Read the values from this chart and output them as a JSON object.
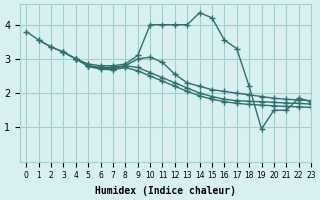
{
  "xlabel": "Humidex (Indice chaleur)",
  "bg_color": "#d8f0f0",
  "grid_color": "#a0d0d0",
  "line_color": "#2d7070",
  "line_width": 1.0,
  "marker": "+",
  "markersize": 5,
  "xlim": [
    -0.5,
    23
  ],
  "ylim": [
    0,
    4.6
  ],
  "yticks": [
    1,
    2,
    3,
    4
  ],
  "xticks": [
    0,
    1,
    2,
    3,
    4,
    5,
    6,
    7,
    8,
    9,
    10,
    11,
    12,
    13,
    14,
    15,
    16,
    17,
    18,
    19,
    20,
    21,
    22,
    23
  ],
  "line1_x": [
    0,
    1,
    2,
    3,
    4,
    5,
    6,
    7,
    8,
    9,
    10,
    11,
    12,
    13,
    14,
    15,
    16,
    17,
    18,
    19,
    20,
    21,
    22,
    23
  ],
  "line1_y": [
    3.8,
    3.55,
    3.35,
    3.2,
    3.0,
    2.85,
    2.8,
    2.8,
    2.85,
    3.1,
    4.0,
    4.0,
    4.0,
    4.0,
    4.35,
    4.2,
    3.55,
    3.3,
    2.2,
    0.95,
    1.5,
    1.5,
    1.85,
    1.75
  ],
  "line2_x": [
    1,
    2,
    3,
    4,
    5,
    6,
    7,
    8,
    9,
    10,
    11,
    12,
    13,
    14,
    15,
    16,
    17,
    18,
    19,
    20,
    21,
    22,
    23
  ],
  "line2_y": [
    3.55,
    3.35,
    3.2,
    3.0,
    2.8,
    2.75,
    2.75,
    2.8,
    3.0,
    3.05,
    2.9,
    2.55,
    2.3,
    2.2,
    2.1,
    2.05,
    2.0,
    1.95,
    1.9,
    1.85,
    1.82,
    1.8,
    1.78
  ],
  "line3_x": [
    3,
    4,
    5,
    6,
    7,
    8,
    9,
    10,
    11,
    12,
    13,
    14,
    15,
    16,
    17,
    18,
    19,
    20,
    21,
    22,
    23
  ],
  "line3_y": [
    3.2,
    3.0,
    2.8,
    2.72,
    2.72,
    2.8,
    2.75,
    2.6,
    2.45,
    2.3,
    2.15,
    2.0,
    1.9,
    1.82,
    1.78,
    1.76,
    1.75,
    1.73,
    1.71,
    1.7,
    1.68
  ],
  "line4_x": [
    4,
    5,
    6,
    7,
    8,
    9,
    10,
    11,
    12,
    13,
    14,
    15,
    16,
    17,
    18,
    19,
    20,
    21,
    22,
    23
  ],
  "line4_y": [
    3.0,
    2.78,
    2.7,
    2.68,
    2.75,
    2.65,
    2.5,
    2.35,
    2.2,
    2.05,
    1.92,
    1.82,
    1.75,
    1.7,
    1.67,
    1.65,
    1.63,
    1.61,
    1.6,
    1.58
  ]
}
